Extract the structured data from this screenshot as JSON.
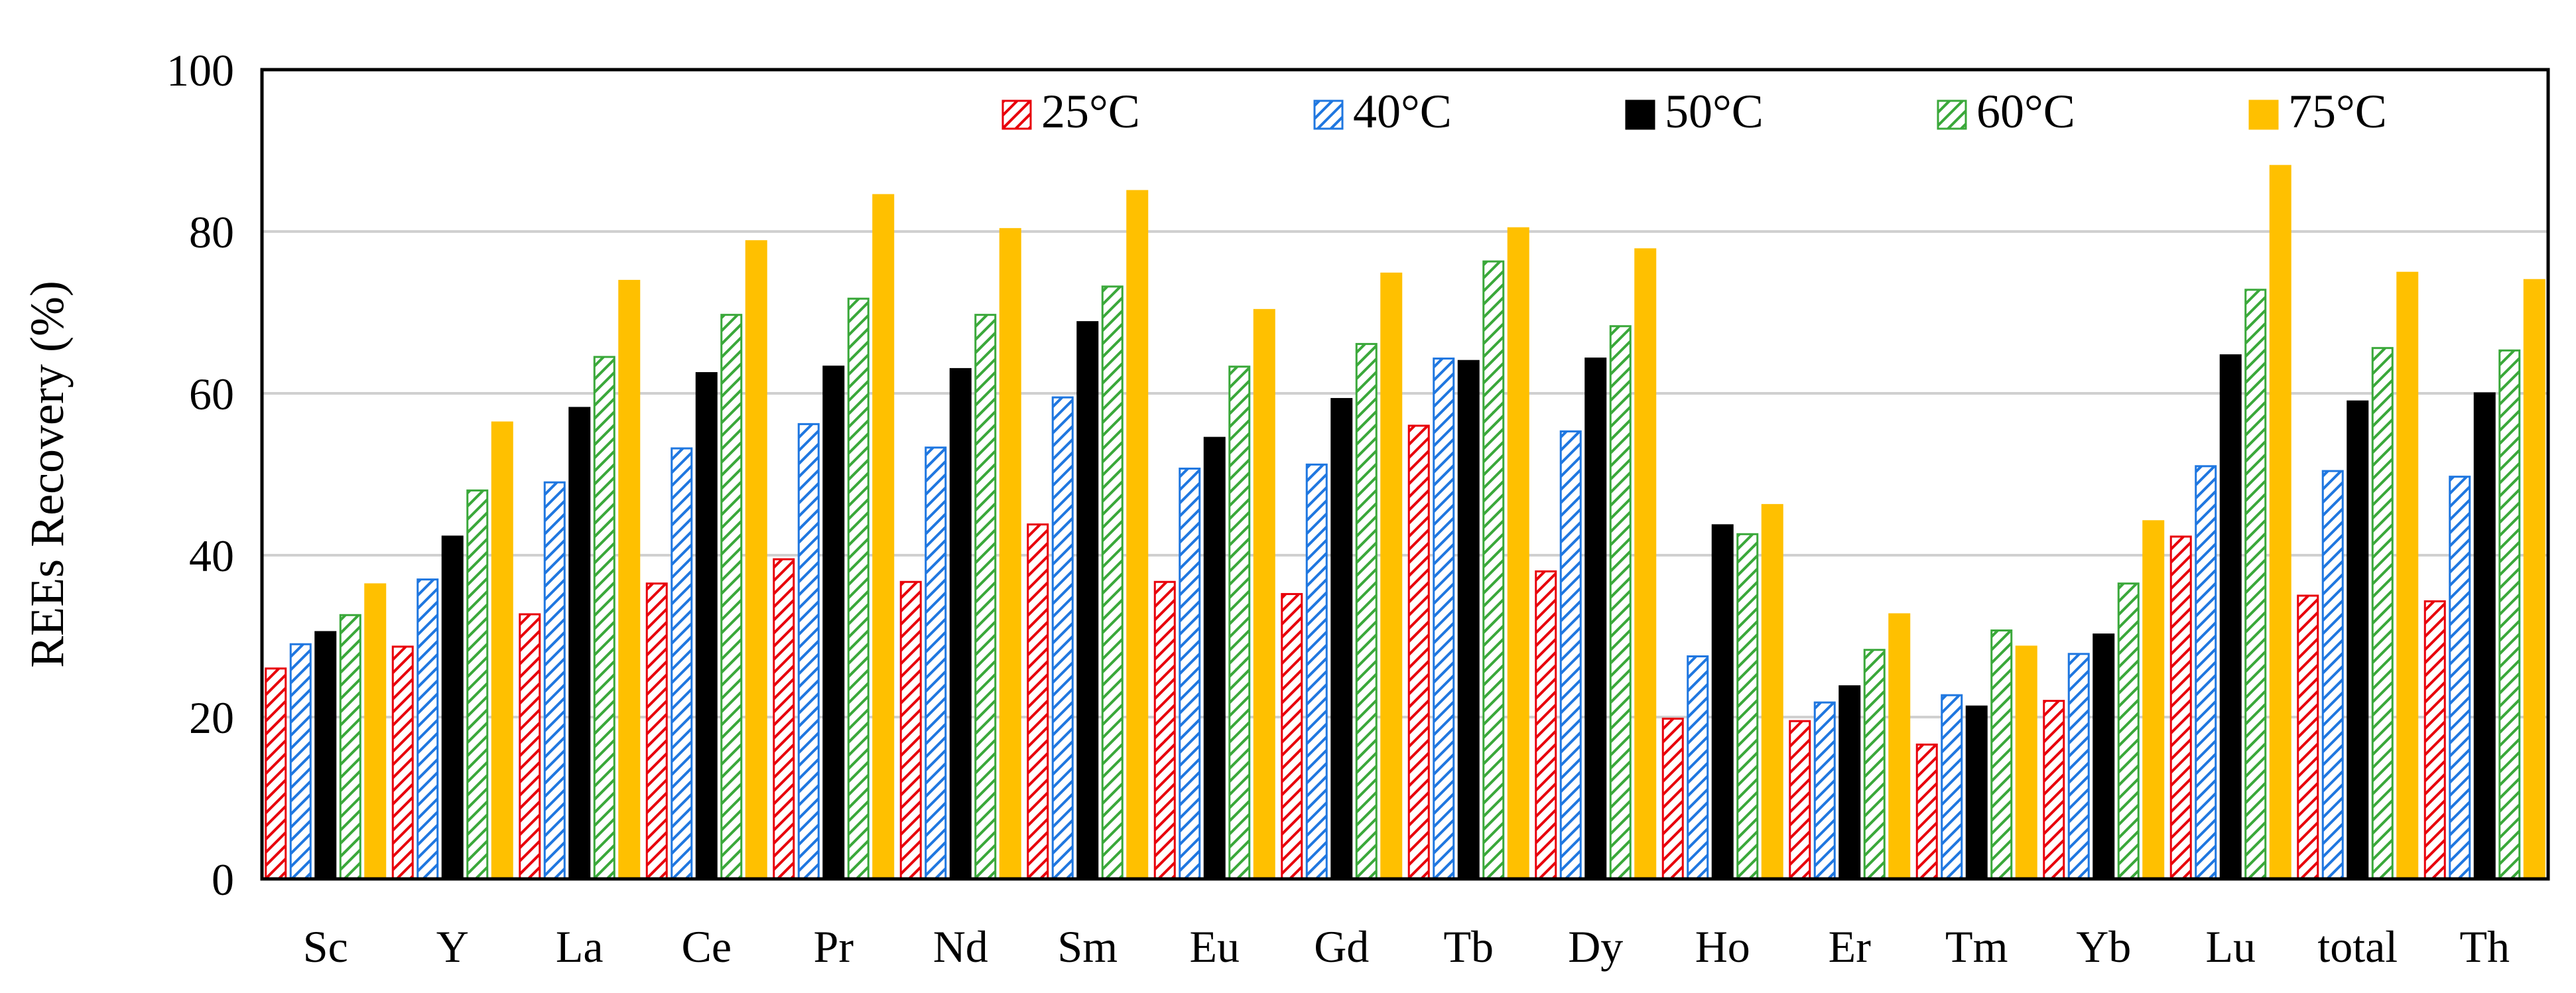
{
  "chart_data": {
    "type": "bar",
    "title": "",
    "xlabel": "",
    "ylabel": "REEs Recovery (%)",
    "ylim": [
      0,
      100
    ],
    "yticks": [
      0,
      20,
      40,
      60,
      80,
      100
    ],
    "grid": true,
    "legend_position": "top-right",
    "categories": [
      "Sc",
      "Y",
      "La",
      "Ce",
      "Pr",
      "Nd",
      "Sm",
      "Eu",
      "Gd",
      "Tb",
      "Dy",
      "Ho",
      "Er",
      "Tm",
      "Yb",
      "Lu",
      "total",
      "Th"
    ],
    "series": [
      {
        "name": "25°C",
        "color": "#e8000b",
        "pattern": "hatch",
        "values": [
          26,
          28.7,
          32.7,
          36.5,
          39.5,
          36.7,
          43.8,
          36.7,
          35.2,
          56,
          38,
          19.8,
          19.5,
          16.6,
          22,
          42.3,
          35,
          34.3
        ]
      },
      {
        "name": "40°C",
        "color": "#1f77e0",
        "pattern": "hatch",
        "values": [
          29,
          37,
          49,
          53.2,
          56.2,
          53.3,
          59.5,
          50.7,
          51.2,
          64.3,
          55.3,
          27.5,
          21.8,
          22.7,
          27.8,
          51,
          50.4,
          49.7
        ]
      },
      {
        "name": "50°C",
        "color": "#000000",
        "pattern": "solid",
        "values": [
          30.5,
          42.3,
          58.2,
          62.5,
          63.3,
          63,
          68.8,
          54.5,
          59.3,
          64,
          64.3,
          43.7,
          23.8,
          21.3,
          30.2,
          64.7,
          59,
          60
        ]
      },
      {
        "name": "60°C",
        "color": "#3aa83a",
        "pattern": "hatch",
        "values": [
          32.6,
          48,
          64.5,
          69.7,
          71.7,
          69.7,
          73.2,
          63.3,
          66.1,
          76.3,
          68.3,
          42.6,
          28.3,
          30.7,
          36.5,
          72.8,
          65.6,
          65.3
        ]
      },
      {
        "name": "75°C",
        "color": "#ffc000",
        "pattern": "solid",
        "values": [
          36.4,
          56.4,
          73.9,
          78.8,
          84.5,
          80.3,
          85,
          70.3,
          74.8,
          80.4,
          77.8,
          46.2,
          32.7,
          28.7,
          44.2,
          88.1,
          74.9,
          74
        ]
      }
    ]
  }
}
